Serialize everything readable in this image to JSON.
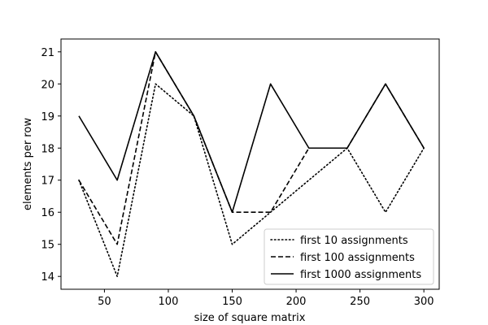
{
  "chart_data": {
    "type": "line",
    "xlabel": "size of square matrix",
    "ylabel": "elements per row",
    "xlim": [
      16,
      312
    ],
    "ylim": [
      13.6,
      21.4
    ],
    "xticks": [
      50,
      100,
      150,
      200,
      250,
      300
    ],
    "yticks": [
      14,
      15,
      16,
      17,
      18,
      19,
      20,
      21
    ],
    "grid": false,
    "legend_position": "bottom-right",
    "x": [
      30,
      60,
      90,
      120,
      150,
      180,
      210,
      240,
      270,
      300
    ],
    "series": [
      {
        "name": "first 10 assignments",
        "style": "dotted",
        "color": "#000000",
        "values": [
          17,
          14,
          20,
          19,
          15,
          16,
          17,
          18,
          16,
          18
        ]
      },
      {
        "name": "first 100 assignments",
        "style": "dashed",
        "color": "#000000",
        "values": [
          17,
          15,
          21,
          19,
          16,
          16,
          18,
          18,
          20,
          18
        ]
      },
      {
        "name": "first 1000 assignments",
        "style": "solid",
        "color": "#000000",
        "values": [
          19,
          17,
          21,
          19,
          16,
          20,
          18,
          18,
          20,
          18
        ]
      }
    ]
  }
}
